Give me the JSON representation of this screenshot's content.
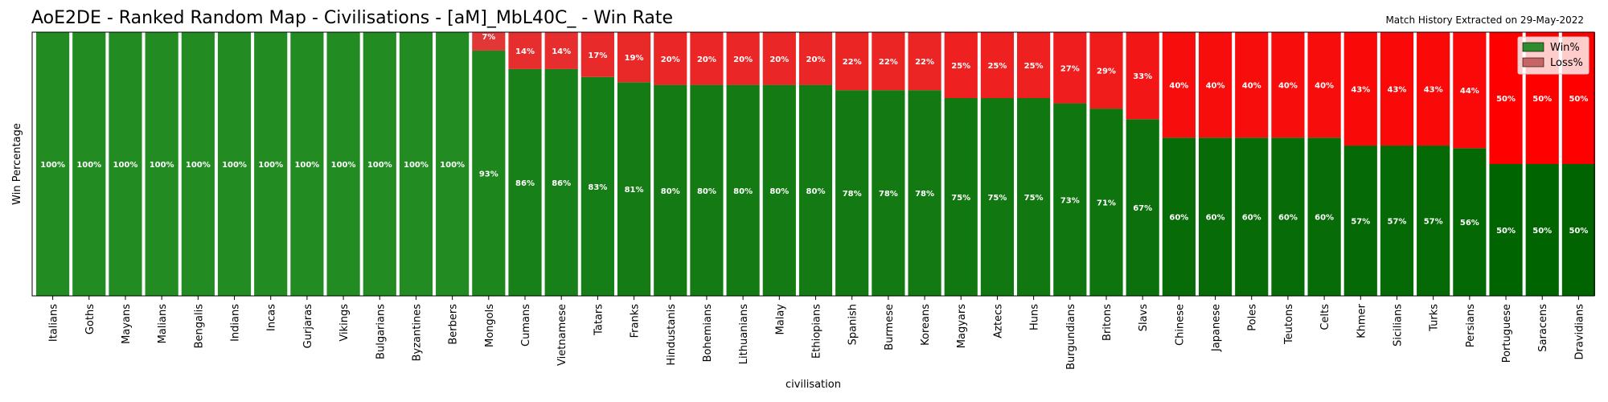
{
  "title": "AoE2DE - Ranked Random Map - Civilisations - [aM]_MbL40C_  - Win Rate",
  "subtitle": "Match History Extracted on 29-May-2022",
  "chart_data": {
    "type": "bar",
    "stacked": true,
    "title": "AoE2DE - Ranked Random Map - Civilisations - [aM]_MbL40C_  - Win Rate",
    "xlabel": "civilisation",
    "ylabel": "Win Percentage",
    "ylim": [
      0,
      100
    ],
    "grid": false,
    "legend_position": "top-right",
    "categories": [
      "Italians",
      "Goths",
      "Mayans",
      "Malians",
      "Bengalis",
      "Indians",
      "Incas",
      "Gurjaras",
      "Vikings",
      "Bulgarians",
      "Byzantines",
      "Berbers",
      "Mongols",
      "Cumans",
      "Vietnamese",
      "Tatars",
      "Franks",
      "Hindustanis",
      "Bohemians",
      "Lithuanians",
      "Malay",
      "Ethiopians",
      "Spanish",
      "Burmese",
      "Koreans",
      "Magyars",
      "Aztecs",
      "Huns",
      "Burgundians",
      "Britons",
      "Slavs",
      "Chinese",
      "Japanese",
      "Poles",
      "Teutons",
      "Celts",
      "Khmer",
      "Sicilians",
      "Turks",
      "Persians",
      "Portuguese",
      "Saracens",
      "Dravidians"
    ],
    "series": [
      {
        "name": "Win%",
        "color": "#2e8b2e",
        "values": [
          100,
          100,
          100,
          100,
          100,
          100,
          100,
          100,
          100,
          100,
          100,
          100,
          93,
          86,
          86,
          83,
          81,
          80,
          80,
          80,
          80,
          80,
          78,
          78,
          78,
          75,
          75,
          75,
          73,
          71,
          67,
          60,
          60,
          60,
          60,
          60,
          57,
          57,
          57,
          56,
          50,
          50,
          50
        ],
        "labels": [
          "100%",
          "100%",
          "100%",
          "100%",
          "100%",
          "100%",
          "100%",
          "100%",
          "100%",
          "100%",
          "100%",
          "100%",
          "93%",
          "86%",
          "86%",
          "83%",
          "81%",
          "80%",
          "80%",
          "80%",
          "80%",
          "80%",
          "78%",
          "78%",
          "78%",
          "75%",
          "75%",
          "75%",
          "73%",
          "71%",
          "67%",
          "60%",
          "60%",
          "60%",
          "60%",
          "60%",
          "57%",
          "57%",
          "57%",
          "56%",
          "50%",
          "50%",
          "50%"
        ]
      },
      {
        "name": "Loss%",
        "color": "#c86464",
        "values": [
          0,
          0,
          0,
          0,
          0,
          0,
          0,
          0,
          0,
          0,
          0,
          0,
          7,
          14,
          14,
          17,
          19,
          20,
          20,
          20,
          20,
          20,
          22,
          22,
          22,
          25,
          25,
          25,
          27,
          29,
          33,
          40,
          40,
          40,
          40,
          40,
          43,
          43,
          43,
          44,
          50,
          50,
          50
        ],
        "labels": [
          "",
          "",
          "",
          "",
          "",
          "",
          "",
          "",
          "",
          "",
          "",
          "",
          "7%",
          "14%",
          "14%",
          "17%",
          "19%",
          "20%",
          "20%",
          "20%",
          "20%",
          "20%",
          "22%",
          "22%",
          "22%",
          "25%",
          "25%",
          "25%",
          "27%",
          "29%",
          "33%",
          "40%",
          "40%",
          "40%",
          "40%",
          "40%",
          "43%",
          "43%",
          "43%",
          "44%",
          "50%",
          "50%",
          "50%"
        ]
      }
    ]
  }
}
